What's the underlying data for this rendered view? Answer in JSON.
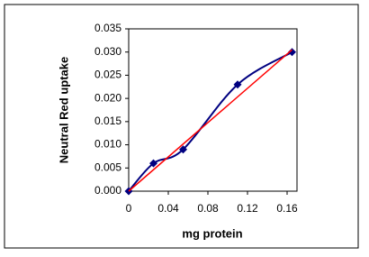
{
  "chart_data": {
    "type": "line",
    "x_label": "mg protein",
    "y_label": "Neutral Red uptake",
    "x": [
      0,
      0.025,
      0.055,
      0.11,
      0.165
    ],
    "series": [
      {
        "color": "#000080",
        "values": [
          0,
          0.006,
          0.009,
          0.023,
          0.03
        ]
      }
    ],
    "trendline": {
      "color": "#ff0000",
      "x": [
        0,
        0.165
      ],
      "values": [
        0,
        0.0305
      ]
    },
    "xlim": [
      0,
      0.17
    ],
    "xticks": [
      0,
      0.04,
      0.08,
      0.12,
      0.16
    ],
    "ylim": [
      0,
      0.035
    ],
    "yticks": [
      {
        "value": 0,
        "label": "0.000"
      },
      {
        "value": 0.005,
        "label": "0.005"
      },
      {
        "value": 0.01,
        "label": "0.010"
      },
      {
        "value": 0.015,
        "label": "0.015"
      },
      {
        "value": 0.02,
        "label": "0.020"
      },
      {
        "value": 0.025,
        "label": "0.025"
      },
      {
        "value": 0.03,
        "label": "0.030"
      },
      {
        "value": 0.035,
        "label": "0.035"
      }
    ],
    "grid": false
  }
}
